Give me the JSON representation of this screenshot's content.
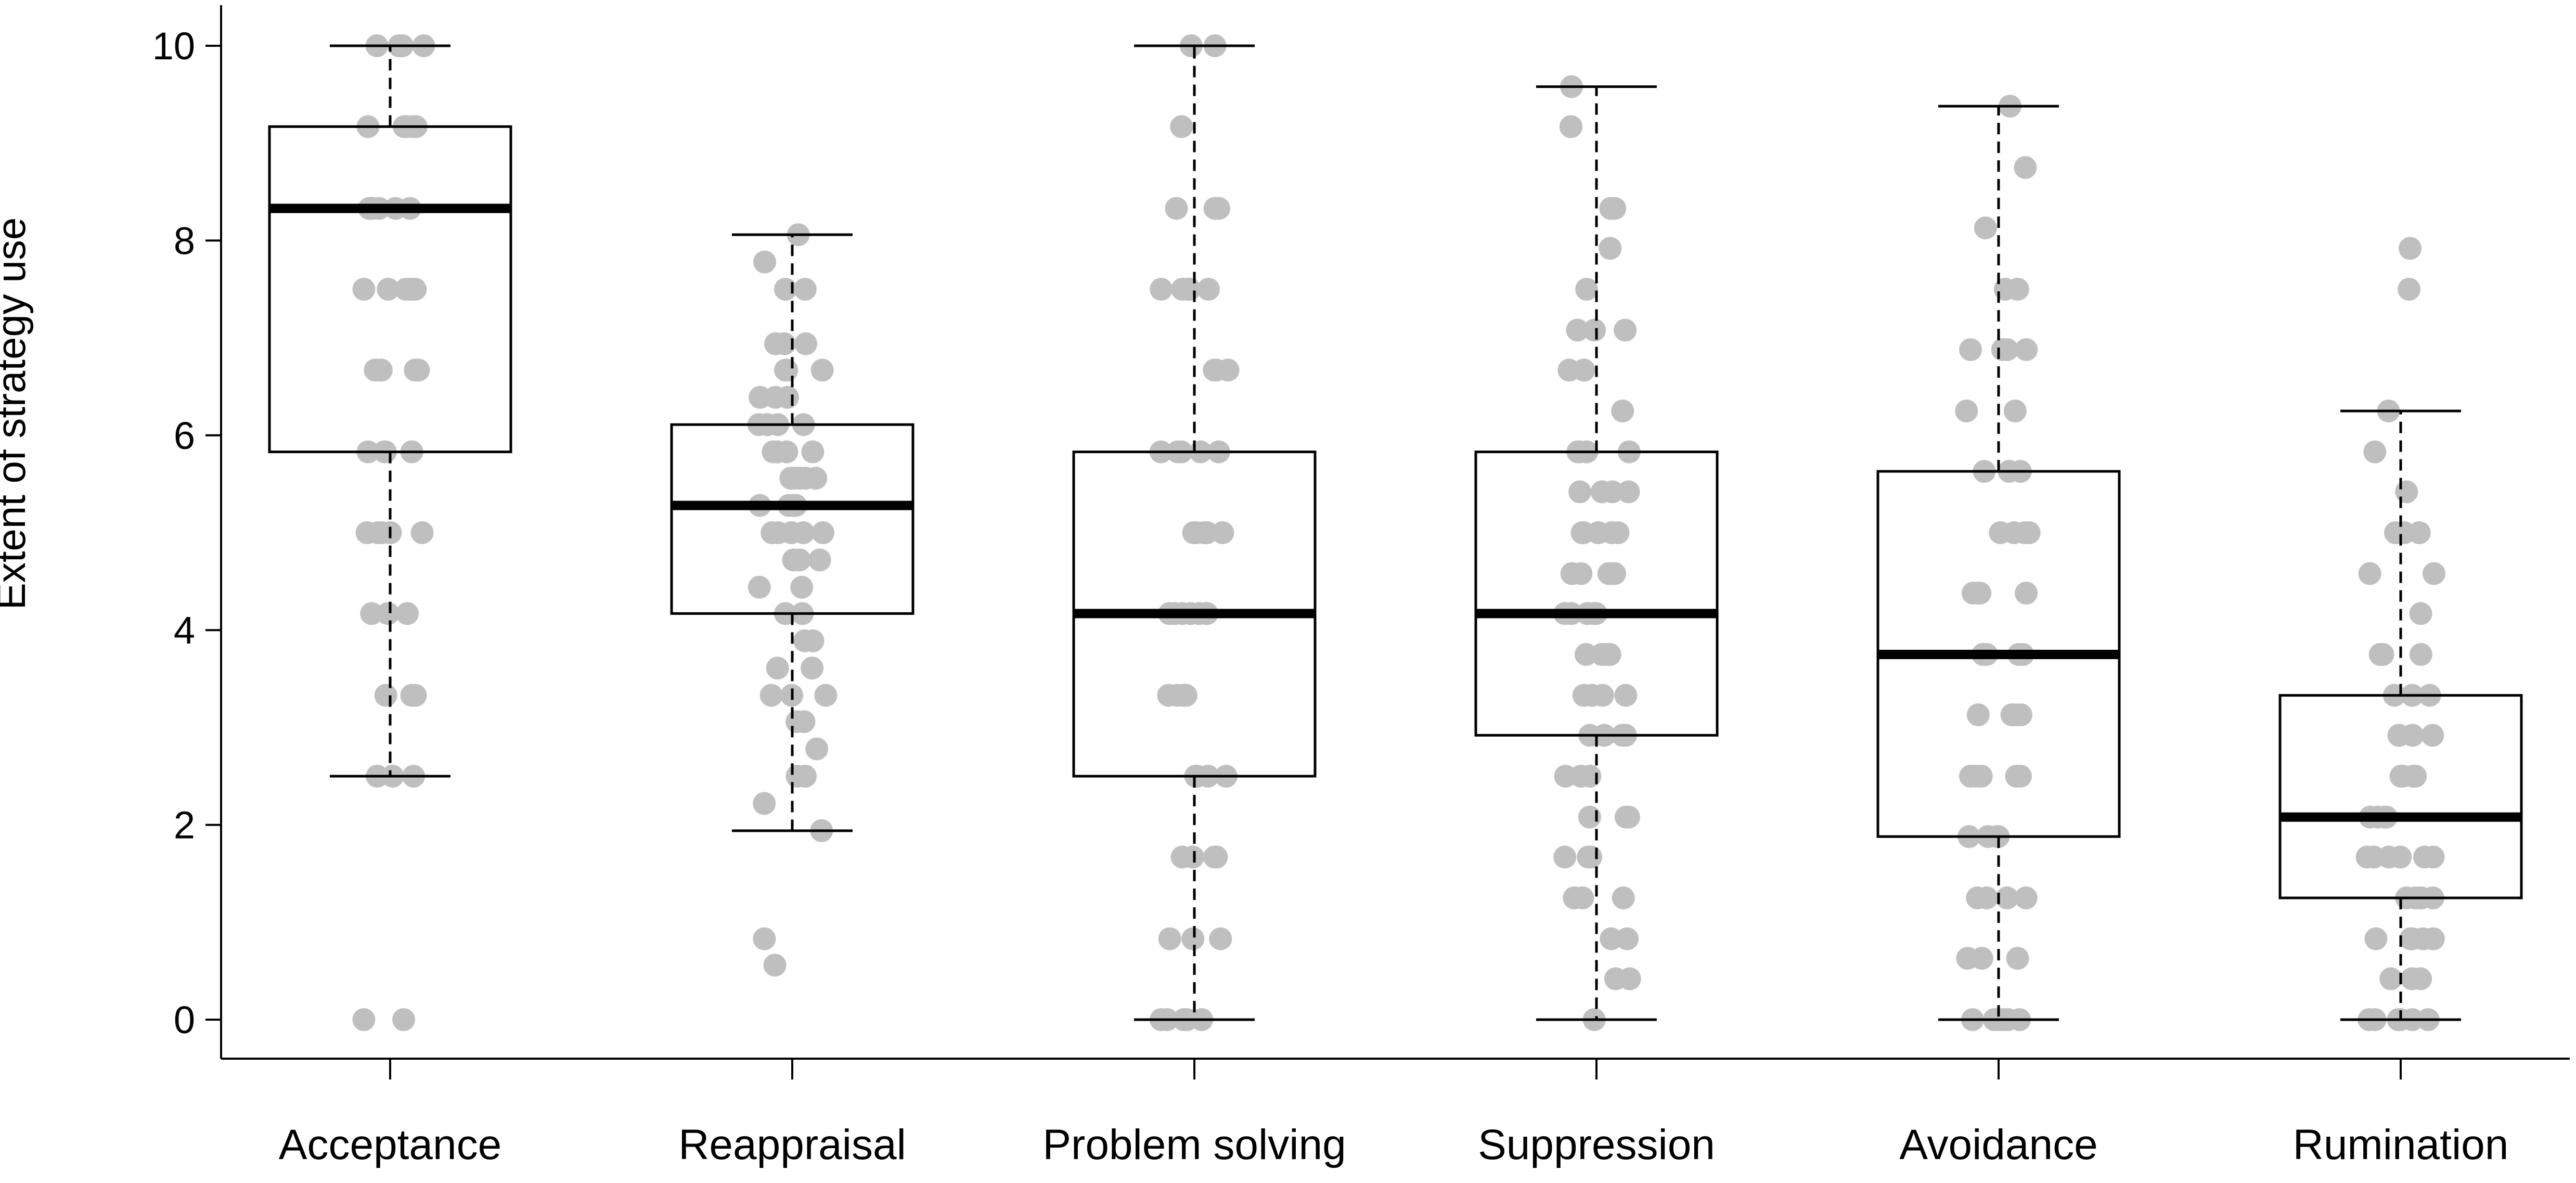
{
  "chart_data": {
    "type": "boxplot",
    "ylabel": "Extent of strategy use",
    "xlabel": "",
    "ylim": [
      0,
      10
    ],
    "yticks": [
      "0",
      "2",
      "4",
      "6",
      "8",
      "10"
    ],
    "categories": [
      "Acceptance",
      "Reappraisal",
      "Problem solving",
      "Suppression",
      "Avoidance",
      "Rumination"
    ],
    "boxes": [
      {
        "category": "Acceptance",
        "whisker_low": 2.5,
        "q1": 5.83,
        "median": 8.33,
        "q3": 9.17,
        "whisker_high": 10
      },
      {
        "category": "Reappraisal",
        "whisker_low": 1.94,
        "q1": 4.17,
        "median": 5.28,
        "q3": 6.11,
        "whisker_high": 8.06
      },
      {
        "category": "Problem solving",
        "whisker_low": 0,
        "q1": 2.5,
        "median": 4.17,
        "q3": 5.83,
        "whisker_high": 10
      },
      {
        "category": "Suppression",
        "whisker_low": 0,
        "q1": 2.92,
        "median": 4.17,
        "q3": 5.83,
        "whisker_high": 9.58
      },
      {
        "category": "Avoidance",
        "whisker_low": 0,
        "q1": 1.88,
        "median": 3.75,
        "q3": 5.63,
        "whisker_high": 9.38
      },
      {
        "category": "Rumination",
        "whisker_low": 0,
        "q1": 1.25,
        "median": 2.08,
        "q3": 3.33,
        "whisker_high": 6.25
      }
    ],
    "points": [
      [
        10,
        10,
        10,
        10,
        10,
        10,
        9.17,
        9.17,
        9.17,
        9.17,
        9.17,
        8.33,
        8.33,
        8.33,
        8.33,
        8.33,
        8.33,
        7.5,
        7.5,
        7.5,
        7.5,
        7.5,
        7.5,
        6.67,
        6.67,
        6.67,
        6.67,
        6.67,
        5.83,
        5.83,
        5.83,
        5.83,
        5,
        5,
        5,
        5,
        5,
        4.17,
        4.17,
        4.17,
        3.33,
        3.33,
        3.33,
        2.5,
        2.5,
        2.5,
        0,
        0
      ],
      [
        8.06,
        7.78,
        7.5,
        7.5,
        6.94,
        6.94,
        6.94,
        6.67,
        6.67,
        6.67,
        6.39,
        6.39,
        6.39,
        6.11,
        6.11,
        6.11,
        6.11,
        5.83,
        5.83,
        5.83,
        5.83,
        5.56,
        5.56,
        5.56,
        5.56,
        5.56,
        5.28,
        5.28,
        5.28,
        5.28,
        5,
        5,
        5,
        5,
        5,
        4.72,
        4.72,
        4.72,
        4.44,
        4.44,
        4.17,
        4.17,
        3.89,
        3.89,
        3.61,
        3.61,
        3.33,
        3.33,
        3.33,
        3.06,
        3.06,
        2.78,
        2.5,
        2.5,
        2.22,
        1.94,
        0.83,
        0.56
      ],
      [
        10,
        10,
        9.17,
        8.33,
        8.33,
        8.33,
        7.5,
        7.5,
        7.5,
        7.5,
        7.5,
        6.67,
        6.67,
        6.67,
        5.83,
        5.83,
        5.83,
        5.83,
        5.83,
        5,
        5,
        5,
        5,
        5,
        5,
        5,
        5,
        4.17,
        4.17,
        4.17,
        4.17,
        4.17,
        4.17,
        4.17,
        3.33,
        3.33,
        3.33,
        3.33,
        3.33,
        2.5,
        2.5,
        2.5,
        2.5,
        1.67,
        1.67,
        1.67,
        1.67,
        0.83,
        0.83,
        0.83,
        0,
        0,
        0,
        0,
        0
      ],
      [
        9.58,
        9.17,
        9.17,
        8.33,
        8.33,
        7.92,
        7.5,
        7.08,
        7.08,
        7.08,
        6.67,
        6.67,
        6.25,
        5.83,
        5.83,
        5.83,
        5.83,
        5.42,
        5.42,
        5.42,
        5.42,
        5,
        5,
        5,
        5,
        5,
        5,
        4.58,
        4.58,
        4.58,
        4.58,
        4.58,
        4.17,
        4.17,
        4.17,
        4.17,
        4.17,
        3.75,
        3.75,
        3.75,
        3.75,
        3.33,
        3.33,
        3.33,
        3.33,
        3.33,
        2.92,
        2.92,
        2.92,
        2.92,
        2.5,
        2.5,
        2.5,
        2.08,
        2.08,
        2.08,
        1.67,
        1.67,
        1.67,
        1.25,
        1.25,
        1.25,
        0.83,
        0.83,
        0.42,
        0.42,
        0
      ],
      [
        9.38,
        8.75,
        8.13,
        7.5,
        7.5,
        6.88,
        6.88,
        6.88,
        6.88,
        6.25,
        6.25,
        5.63,
        5.63,
        5.63,
        5,
        5,
        5,
        5,
        4.38,
        4.38,
        4.38,
        4.38,
        3.75,
        3.75,
        3.75,
        3.75,
        3.13,
        3.13,
        3.13,
        3.13,
        3.13,
        2.5,
        2.5,
        2.5,
        2.5,
        2.5,
        2.5,
        1.88,
        1.88,
        1.88,
        1.88,
        1.25,
        1.25,
        1.25,
        1.25,
        0.63,
        0.63,
        0.63,
        0,
        0,
        0,
        0,
        0,
        0
      ],
      [
        7.92,
        7.5,
        6.25,
        5.83,
        5.42,
        5,
        5,
        5,
        4.58,
        4.58,
        4.17,
        3.75,
        3.75,
        3.75,
        3.33,
        3.33,
        3.33,
        2.92,
        2.92,
        2.92,
        2.92,
        2.5,
        2.5,
        2.5,
        2.5,
        2.5,
        2.08,
        2.08,
        2.08,
        2.08,
        1.67,
        1.67,
        1.67,
        1.67,
        1.67,
        1.67,
        1.25,
        1.25,
        1.25,
        1.25,
        1.25,
        0.83,
        0.83,
        0.83,
        0.83,
        0.83,
        0.42,
        0.42,
        0.42,
        0,
        0,
        0,
        0,
        0,
        0
      ]
    ],
    "colors": {
      "box": "#000000",
      "points": "#bfbfbf",
      "median": "#000000"
    },
    "grid": false,
    "legend": "none"
  }
}
